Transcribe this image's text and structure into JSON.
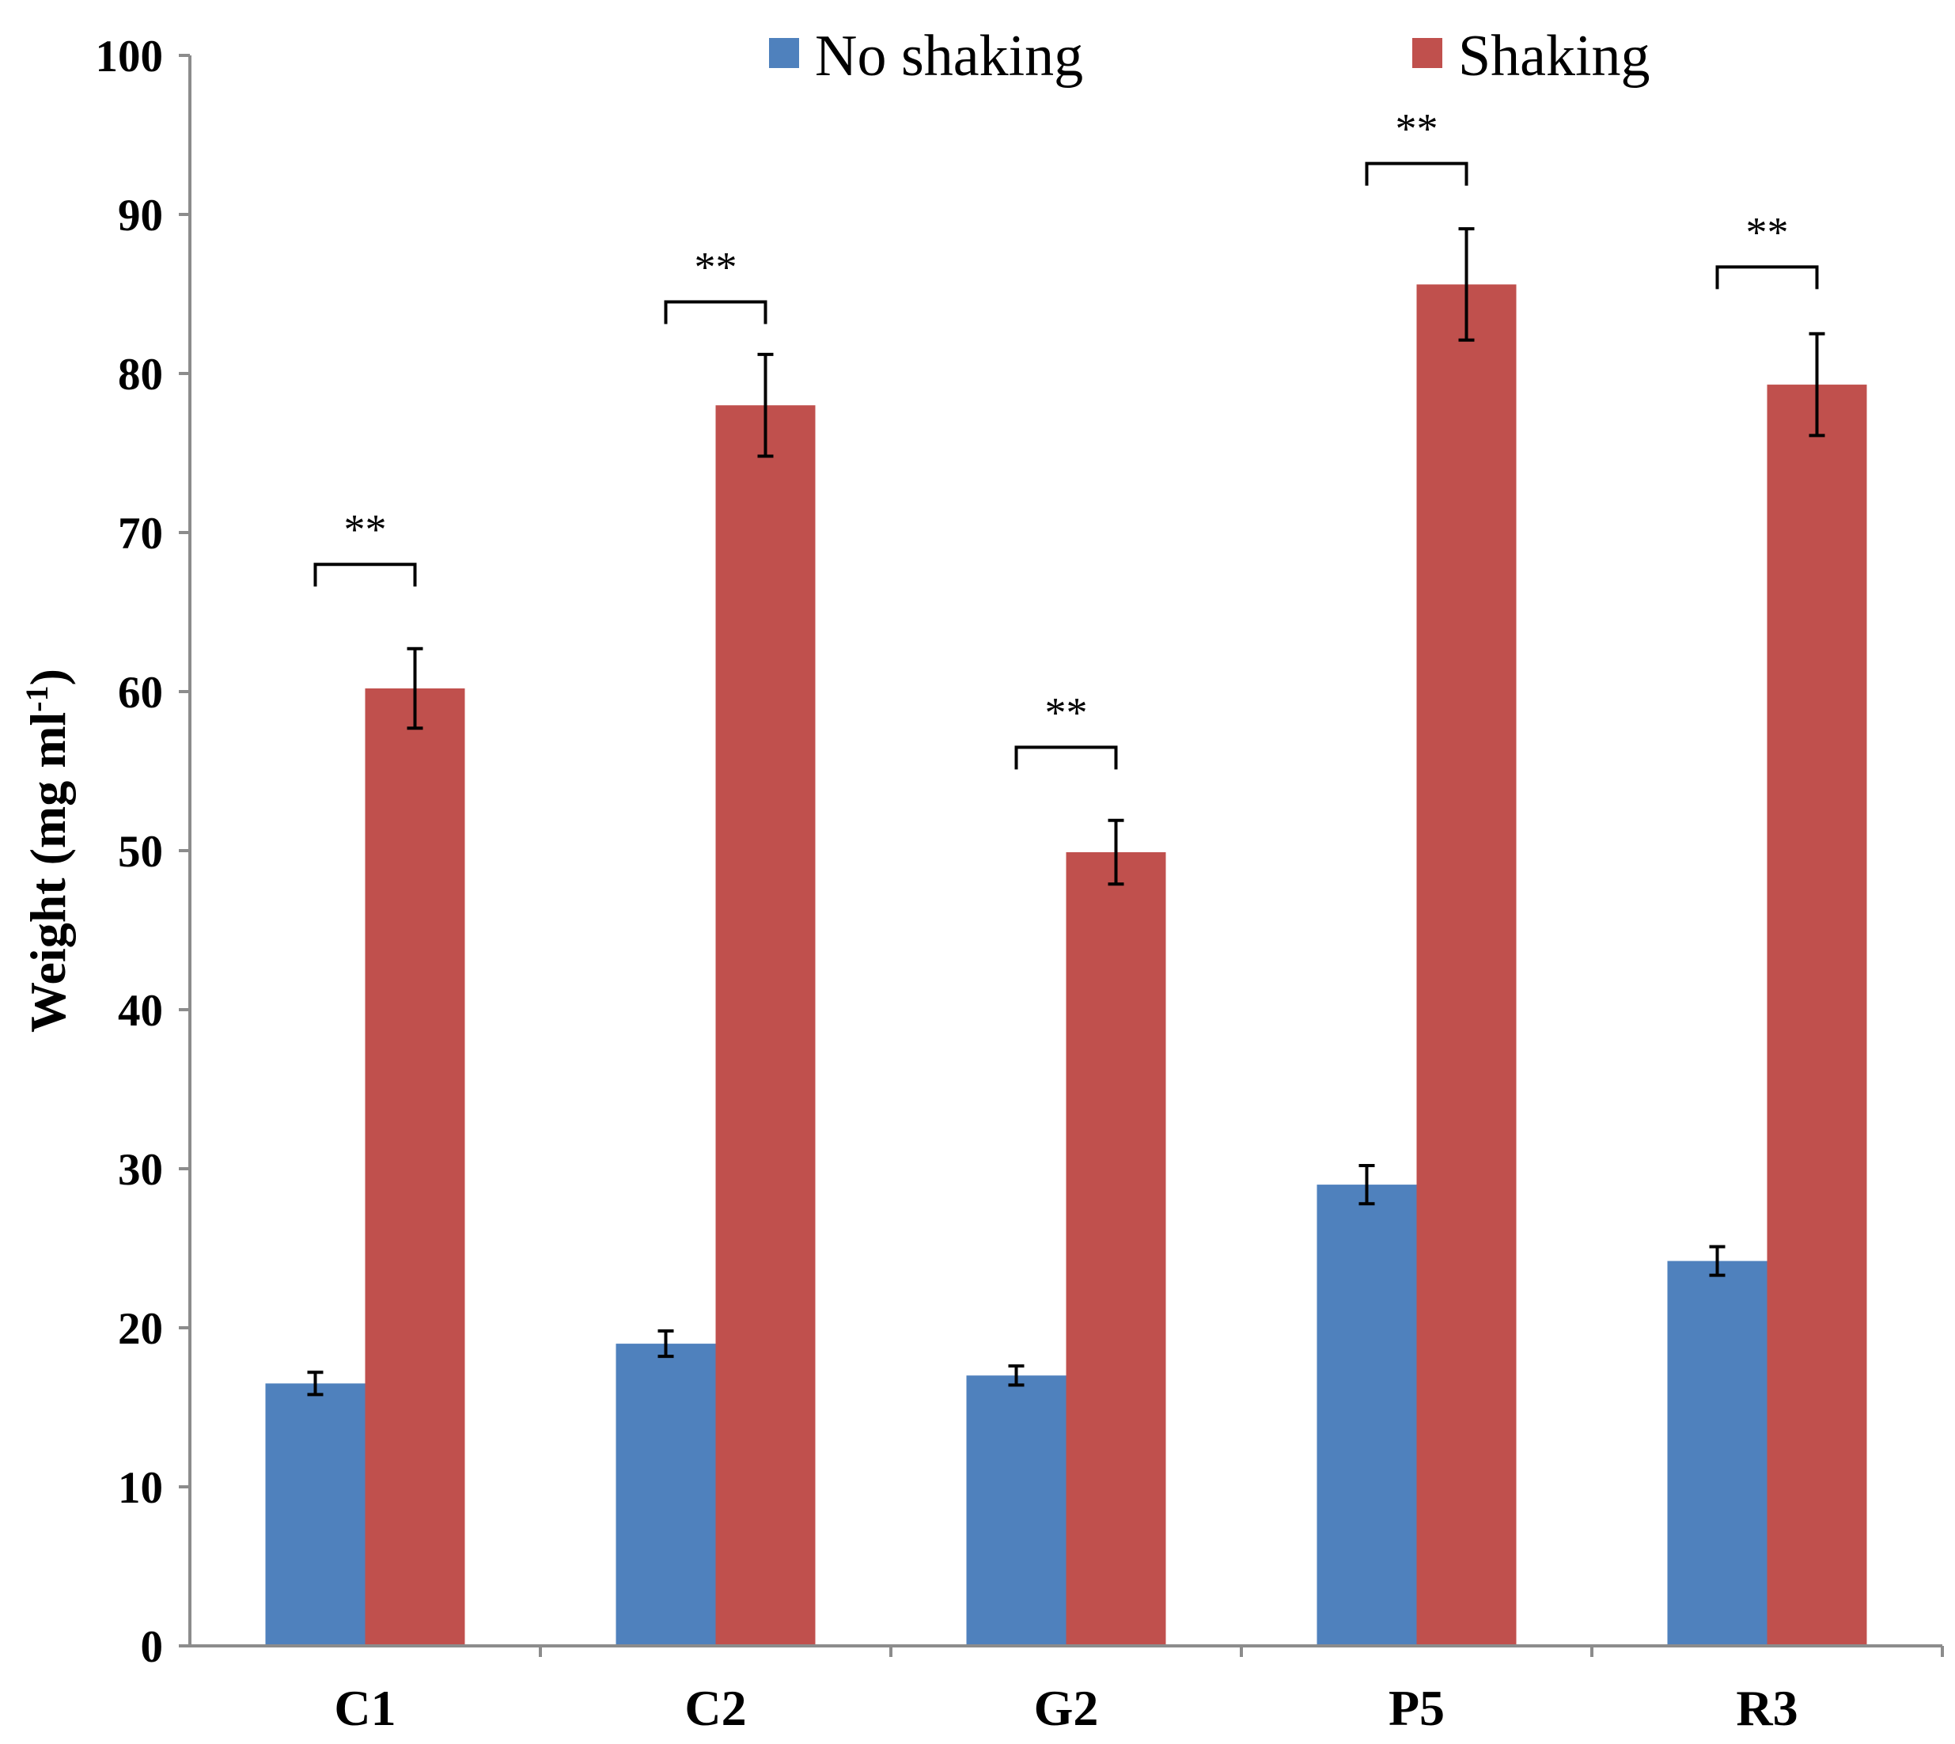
{
  "chart_data": {
    "type": "bar",
    "title": "",
    "xlabel": "",
    "ylabel": "Weight  (mg  ml",
    "ylabel_superscript": "-1",
    "ylabel_close": ")",
    "ylim": [
      0,
      100
    ],
    "yticks": [
      0,
      10,
      20,
      30,
      40,
      50,
      60,
      70,
      80,
      90,
      100
    ],
    "grid": false,
    "legend_position": "top",
    "categories": [
      "C1",
      "C2",
      "G2",
      "P5",
      "R3"
    ],
    "series": [
      {
        "name": "No shaking",
        "color": "#4f81bd",
        "values": [
          16.5,
          19.0,
          17.0,
          29.0,
          24.2
        ],
        "errors": [
          0.7,
          0.8,
          0.6,
          1.2,
          0.9
        ]
      },
      {
        "name": "Shaking",
        "color": "#c0504d",
        "values": [
          60.2,
          78.0,
          49.9,
          85.6,
          79.3
        ],
        "errors": [
          2.5,
          3.2,
          2.0,
          3.5,
          3.2
        ]
      }
    ],
    "annotations": [
      {
        "category": "C1",
        "label": "**",
        "bracket_value": 68.0
      },
      {
        "category": "C2",
        "label": "**",
        "bracket_value": 84.5
      },
      {
        "category": "G2",
        "label": "**",
        "bracket_value": 56.5
      },
      {
        "category": "P5",
        "label": "**",
        "bracket_value": 93.2
      },
      {
        "category": "R3",
        "label": "**",
        "bracket_value": 86.7
      }
    ]
  }
}
